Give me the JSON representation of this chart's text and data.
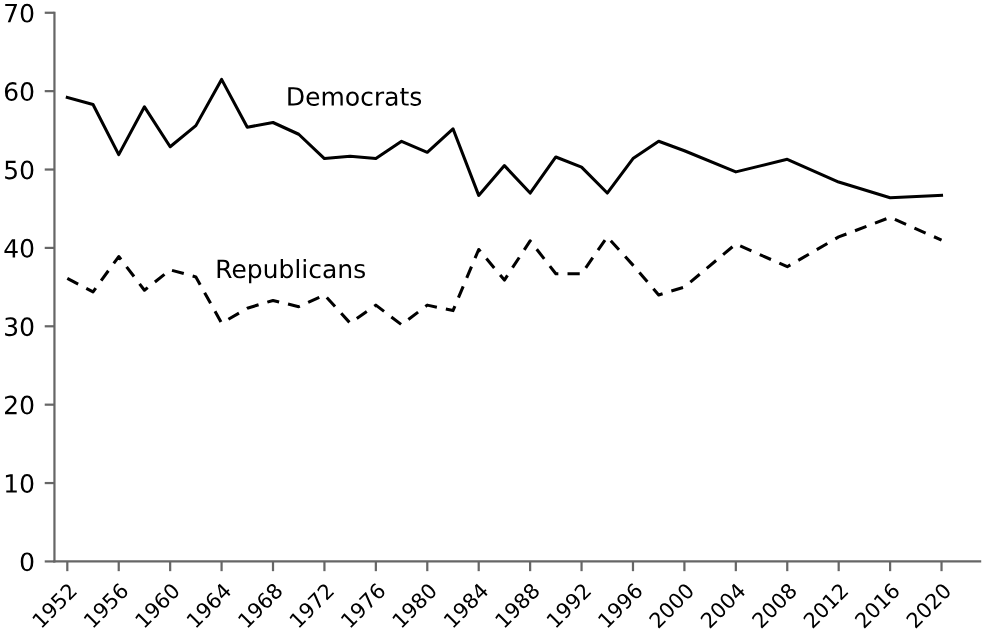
{
  "chart_data": {
    "type": "line",
    "x": [
      1952,
      1954,
      1956,
      1958,
      1960,
      1962,
      1964,
      1966,
      1968,
      1970,
      1972,
      1974,
      1976,
      1978,
      1980,
      1982,
      1984,
      1986,
      1988,
      1990,
      1992,
      1994,
      1996,
      1998,
      2000,
      2004,
      2008,
      2012,
      2016,
      2020
    ],
    "series": [
      {
        "name": "Democrats",
        "color": "#000000",
        "line_style": "solid",
        "values": [
          59.2,
          58.3,
          51.9,
          58.0,
          52.9,
          55.6,
          61.5,
          55.4,
          56.0,
          54.5,
          51.4,
          51.7,
          51.4,
          53.6,
          52.2,
          55.2,
          46.7,
          50.5,
          47.0,
          51.6,
          50.3,
          47.0,
          51.4,
          53.6,
          52.4,
          49.7,
          51.3,
          48.4,
          46.4,
          46.7
        ]
      },
      {
        "name": "Republicans",
        "color": "#000000",
        "line_style": "dashed",
        "values": [
          36.1,
          34.4,
          38.9,
          34.6,
          37.2,
          36.3,
          30.4,
          32.3,
          33.3,
          32.5,
          34.0,
          30.4,
          32.7,
          30.2,
          32.7,
          32.0,
          39.8,
          35.9,
          40.9,
          36.7,
          36.7,
          41.4,
          37.8,
          34.0,
          35.0,
          40.5,
          37.6,
          41.4,
          43.9,
          41.0
        ]
      }
    ],
    "xlim": [
      1951,
      2023
    ],
    "xticks": [
      1952,
      1956,
      1960,
      1964,
      1968,
      1972,
      1976,
      1980,
      1984,
      1988,
      1992,
      1996,
      2000,
      2004,
      2008,
      2012,
      2016,
      2020
    ],
    "ylim": [
      0,
      70
    ],
    "yticks": [
      0,
      10,
      20,
      30,
      40,
      50,
      60,
      70
    ],
    "grid": false,
    "legend": false,
    "marker": "none"
  }
}
